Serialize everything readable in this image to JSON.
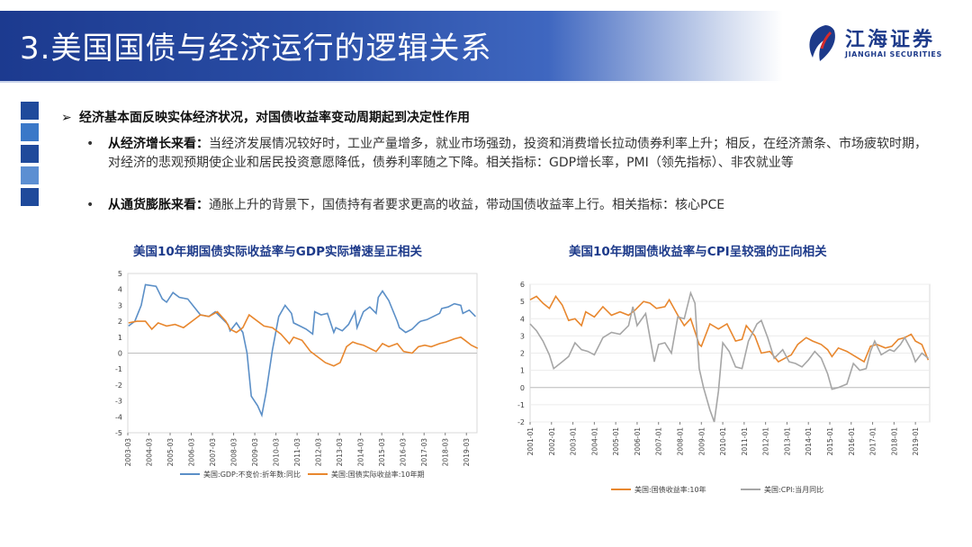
{
  "header": {
    "title": "3.美国国债与经济运行的逻辑关系"
  },
  "logo": {
    "cn": "江海证券",
    "en": "JIANGHAI SECURITIES"
  },
  "bullets": {
    "main": "经济基本面反映实体经济状况，对国债收益率变动周期起到决定性作用",
    "items": [
      {
        "lead": "从经济增长来看：",
        "text": "当经济发展情况较好时，工业产量增多，就业市场强劲，投资和消费增长拉动债券利率上升；相反，在经济萧条、市场疲软时期，对经济的悲观预期使企业和居民投资意愿降低，债券利率随之下降。相关指标：GDP增长率，PMI（领先指标）、非农就业等"
      },
      {
        "lead": "从通货膨胀来看：",
        "text": "通胀上升的背景下，国债持有者要求更高的收益，带动国债收益率上行。相关指标：核心PCE"
      }
    ]
  },
  "colors": {
    "blue": "#5b8fc7",
    "orange": "#e8872e",
    "gray": "#a6a6a6",
    "brand": "#1d3a8a"
  },
  "chart_data": [
    {
      "type": "line",
      "title": "美国10年期国债实际收益率与GDP实际增速呈正相关",
      "ylim": [
        -5,
        5
      ],
      "yticks": [
        "5",
        "4",
        "3",
        "2",
        "1",
        "0",
        "-1",
        "-2",
        "-3",
        "-4",
        "-5"
      ],
      "xticks": [
        "2003-03",
        "2004-03",
        "2005-03",
        "2006-03",
        "2007-03",
        "2008-03",
        "2009-03",
        "2010-03",
        "2011-03",
        "2012-03",
        "2013-03",
        "2014-03",
        "2015-03",
        "2016-03",
        "2017-03",
        "2018-03",
        "2019-03"
      ],
      "x_range": [
        "2003-03",
        "2019-09"
      ],
      "series": [
        {
          "name": "美国:GDP:不变价:折年数:同比",
          "color": "blue",
          "points": [
            [
              2003.2,
              1.7
            ],
            [
              2003.5,
              2.0
            ],
            [
              2003.8,
              3.0
            ],
            [
              2004.0,
              4.3
            ],
            [
              2004.5,
              4.2
            ],
            [
              2004.8,
              3.4
            ],
            [
              2005.0,
              3.2
            ],
            [
              2005.3,
              3.8
            ],
            [
              2005.6,
              3.5
            ],
            [
              2006.0,
              3.4
            ],
            [
              2006.3,
              2.9
            ],
            [
              2006.6,
              2.4
            ],
            [
              2007.0,
              2.3
            ],
            [
              2007.3,
              2.6
            ],
            [
              2007.6,
              2.2
            ],
            [
              2007.9,
              1.8
            ],
            [
              2008.0,
              1.4
            ],
            [
              2008.3,
              1.9
            ],
            [
              2008.6,
              1.3
            ],
            [
              2008.8,
              0.0
            ],
            [
              2009.0,
              -2.7
            ],
            [
              2009.3,
              -3.3
            ],
            [
              2009.5,
              -3.9
            ],
            [
              2009.7,
              -2.5
            ],
            [
              2010.0,
              0.2
            ],
            [
              2010.3,
              2.3
            ],
            [
              2010.6,
              3.0
            ],
            [
              2010.9,
              2.5
            ],
            [
              2011.0,
              1.9
            ],
            [
              2011.3,
              1.7
            ],
            [
              2011.6,
              1.5
            ],
            [
              2011.9,
              1.2
            ],
            [
              2012.0,
              2.6
            ],
            [
              2012.3,
              2.4
            ],
            [
              2012.6,
              2.5
            ],
            [
              2012.9,
              1.3
            ],
            [
              2013.0,
              1.6
            ],
            [
              2013.3,
              1.4
            ],
            [
              2013.6,
              1.8
            ],
            [
              2013.9,
              2.6
            ],
            [
              2014.0,
              1.6
            ],
            [
              2014.3,
              2.6
            ],
            [
              2014.6,
              2.9
            ],
            [
              2014.9,
              2.5
            ],
            [
              2015.0,
              3.5
            ],
            [
              2015.2,
              3.9
            ],
            [
              2015.5,
              3.3
            ],
            [
              2015.9,
              2.0
            ],
            [
              2016.0,
              1.6
            ],
            [
              2016.3,
              1.3
            ],
            [
              2016.6,
              1.5
            ],
            [
              2016.9,
              1.9
            ],
            [
              2017.0,
              2.0
            ],
            [
              2017.3,
              2.1
            ],
            [
              2017.6,
              2.3
            ],
            [
              2017.9,
              2.5
            ],
            [
              2018.0,
              2.8
            ],
            [
              2018.3,
              2.9
            ],
            [
              2018.6,
              3.1
            ],
            [
              2018.9,
              3.0
            ],
            [
              2019.0,
              2.5
            ],
            [
              2019.3,
              2.7
            ],
            [
              2019.6,
              2.3
            ]
          ]
        },
        {
          "name": "美国:国债实际收益率:10年期",
          "color": "orange",
          "points": [
            [
              2003.2,
              1.9
            ],
            [
              2003.6,
              2.0
            ],
            [
              2004.0,
              2.0
            ],
            [
              2004.3,
              1.5
            ],
            [
              2004.6,
              1.9
            ],
            [
              2005.0,
              1.7
            ],
            [
              2005.4,
              1.8
            ],
            [
              2005.8,
              1.6
            ],
            [
              2006.2,
              2.0
            ],
            [
              2006.6,
              2.4
            ],
            [
              2007.0,
              2.3
            ],
            [
              2007.4,
              2.6
            ],
            [
              2007.8,
              2.0
            ],
            [
              2008.0,
              1.5
            ],
            [
              2008.3,
              1.3
            ],
            [
              2008.6,
              1.6
            ],
            [
              2008.9,
              2.4
            ],
            [
              2009.2,
              2.1
            ],
            [
              2009.6,
              1.7
            ],
            [
              2010.0,
              1.6
            ],
            [
              2010.4,
              1.2
            ],
            [
              2010.8,
              0.6
            ],
            [
              2011.0,
              1.0
            ],
            [
              2011.4,
              0.8
            ],
            [
              2011.8,
              0.1
            ],
            [
              2012.1,
              -0.2
            ],
            [
              2012.5,
              -0.6
            ],
            [
              2012.9,
              -0.8
            ],
            [
              2013.2,
              -0.6
            ],
            [
              2013.5,
              0.4
            ],
            [
              2013.8,
              0.7
            ],
            [
              2014.0,
              0.6
            ],
            [
              2014.3,
              0.5
            ],
            [
              2014.6,
              0.3
            ],
            [
              2014.9,
              0.1
            ],
            [
              2015.2,
              0.6
            ],
            [
              2015.5,
              0.4
            ],
            [
              2015.9,
              0.6
            ],
            [
              2016.2,
              0.1
            ],
            [
              2016.6,
              0.0
            ],
            [
              2016.9,
              0.4
            ],
            [
              2017.2,
              0.5
            ],
            [
              2017.5,
              0.4
            ],
            [
              2017.9,
              0.6
            ],
            [
              2018.2,
              0.7
            ],
            [
              2018.6,
              0.9
            ],
            [
              2018.9,
              1.0
            ],
            [
              2019.1,
              0.8
            ],
            [
              2019.4,
              0.5
            ],
            [
              2019.7,
              0.3
            ]
          ]
        }
      ]
    },
    {
      "type": "line",
      "title": "美国10年期国债收益率与CPI呈较强的正向相关",
      "ylim": [
        -2,
        6
      ],
      "yticks": [
        "6",
        "5",
        "4",
        "3",
        "2",
        "1",
        "0",
        "-1",
        "-2"
      ],
      "xticks": [
        "2001-01",
        "2002-01",
        "2003-01",
        "2004-01",
        "2005-01",
        "2006-01",
        "2007-01",
        "2008-01",
        "2009-01",
        "2010-01",
        "2011-01",
        "2012-01",
        "2013-01",
        "2014-01",
        "2015-01",
        "2016-01",
        "2017-01",
        "2018-01",
        "2019-01"
      ],
      "x_range": [
        "2001-01",
        "2019-09"
      ],
      "series": [
        {
          "name": "美国:国债收益率:10年",
          "color": "orange",
          "points": [
            [
              2001.0,
              5.1
            ],
            [
              2001.3,
              5.3
            ],
            [
              2001.6,
              4.9
            ],
            [
              2001.9,
              4.6
            ],
            [
              2002.2,
              5.3
            ],
            [
              2002.5,
              4.8
            ],
            [
              2002.8,
              3.9
            ],
            [
              2003.1,
              4.0
            ],
            [
              2003.4,
              3.6
            ],
            [
              2003.6,
              4.4
            ],
            [
              2004.0,
              4.1
            ],
            [
              2004.4,
              4.7
            ],
            [
              2004.8,
              4.2
            ],
            [
              2005.2,
              4.4
            ],
            [
              2005.6,
              4.2
            ],
            [
              2005.9,
              4.5
            ],
            [
              2006.3,
              5.0
            ],
            [
              2006.6,
              4.9
            ],
            [
              2006.9,
              4.6
            ],
            [
              2007.3,
              4.7
            ],
            [
              2007.5,
              5.1
            ],
            [
              2007.9,
              4.2
            ],
            [
              2008.2,
              3.6
            ],
            [
              2008.5,
              4.0
            ],
            [
              2008.9,
              2.5
            ],
            [
              2009.0,
              2.4
            ],
            [
              2009.4,
              3.7
            ],
            [
              2009.8,
              3.4
            ],
            [
              2010.2,
              3.7
            ],
            [
              2010.6,
              2.7
            ],
            [
              2010.9,
              2.8
            ],
            [
              2011.1,
              3.6
            ],
            [
              2011.5,
              3.0
            ],
            [
              2011.8,
              2.0
            ],
            [
              2012.2,
              2.1
            ],
            [
              2012.6,
              1.5
            ],
            [
              2012.9,
              1.7
            ],
            [
              2013.2,
              1.9
            ],
            [
              2013.5,
              2.5
            ],
            [
              2013.9,
              2.9
            ],
            [
              2014.2,
              2.7
            ],
            [
              2014.6,
              2.5
            ],
            [
              2014.9,
              2.2
            ],
            [
              2015.1,
              1.8
            ],
            [
              2015.4,
              2.3
            ],
            [
              2015.8,
              2.1
            ],
            [
              2016.2,
              1.8
            ],
            [
              2016.6,
              1.5
            ],
            [
              2016.9,
              2.4
            ],
            [
              2017.2,
              2.5
            ],
            [
              2017.6,
              2.3
            ],
            [
              2017.9,
              2.4
            ],
            [
              2018.2,
              2.8
            ],
            [
              2018.5,
              2.9
            ],
            [
              2018.8,
              3.1
            ],
            [
              2019.0,
              2.7
            ],
            [
              2019.3,
              2.5
            ],
            [
              2019.6,
              1.6
            ]
          ]
        },
        {
          "name": "美国:CPI:当月同比",
          "color": "gray",
          "points": [
            [
              2001.0,
              3.7
            ],
            [
              2001.3,
              3.3
            ],
            [
              2001.6,
              2.7
            ],
            [
              2001.9,
              1.9
            ],
            [
              2002.1,
              1.1
            ],
            [
              2002.5,
              1.5
            ],
            [
              2002.8,
              1.8
            ],
            [
              2003.1,
              2.6
            ],
            [
              2003.4,
              2.2
            ],
            [
              2003.7,
              2.1
            ],
            [
              2004.0,
              1.9
            ],
            [
              2004.4,
              2.9
            ],
            [
              2004.8,
              3.2
            ],
            [
              2005.2,
              3.1
            ],
            [
              2005.6,
              3.6
            ],
            [
              2005.8,
              4.7
            ],
            [
              2006.0,
              3.6
            ],
            [
              2006.4,
              4.3
            ],
            [
              2006.8,
              1.5
            ],
            [
              2007.0,
              2.5
            ],
            [
              2007.3,
              2.6
            ],
            [
              2007.6,
              2.0
            ],
            [
              2007.9,
              4.1
            ],
            [
              2008.2,
              4.0
            ],
            [
              2008.5,
              5.5
            ],
            [
              2008.7,
              4.9
            ],
            [
              2008.9,
              1.1
            ],
            [
              2009.1,
              0.0
            ],
            [
              2009.4,
              -1.3
            ],
            [
              2009.6,
              -2.0
            ],
            [
              2009.8,
              -0.2
            ],
            [
              2010.0,
              2.6
            ],
            [
              2010.3,
              2.1
            ],
            [
              2010.6,
              1.2
            ],
            [
              2010.9,
              1.1
            ],
            [
              2011.2,
              2.7
            ],
            [
              2011.6,
              3.7
            ],
            [
              2011.8,
              3.9
            ],
            [
              2012.1,
              2.9
            ],
            [
              2012.4,
              1.7
            ],
            [
              2012.8,
              2.2
            ],
            [
              2013.1,
              1.5
            ],
            [
              2013.4,
              1.4
            ],
            [
              2013.7,
              1.2
            ],
            [
              2014.0,
              1.6
            ],
            [
              2014.3,
              2.1
            ],
            [
              2014.6,
              1.7
            ],
            [
              2014.9,
              0.8
            ],
            [
              2015.1,
              -0.1
            ],
            [
              2015.4,
              0.0
            ],
            [
              2015.8,
              0.2
            ],
            [
              2016.1,
              1.4
            ],
            [
              2016.4,
              1.0
            ],
            [
              2016.7,
              1.1
            ],
            [
              2016.9,
              2.1
            ],
            [
              2017.1,
              2.7
            ],
            [
              2017.4,
              1.9
            ],
            [
              2017.8,
              2.2
            ],
            [
              2018.0,
              2.1
            ],
            [
              2018.3,
              2.5
            ],
            [
              2018.5,
              2.9
            ],
            [
              2018.8,
              2.2
            ],
            [
              2019.0,
              1.5
            ],
            [
              2019.3,
              2.0
            ],
            [
              2019.6,
              1.7
            ]
          ]
        }
      ]
    }
  ]
}
